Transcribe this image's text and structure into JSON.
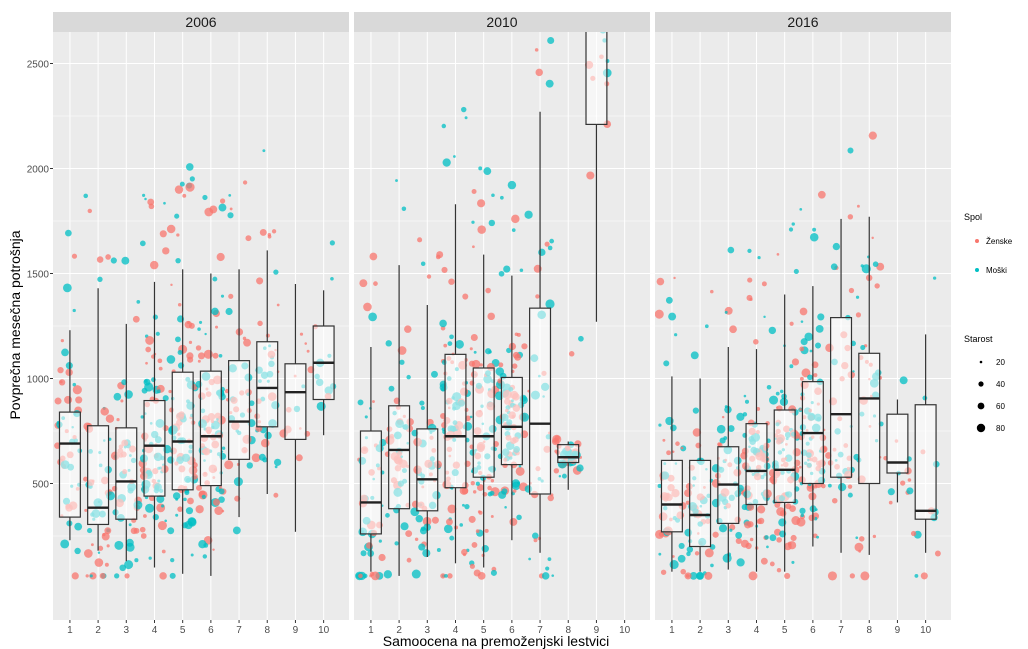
{
  "chart_data": {
    "type": "scatter",
    "subtype": "faceted jittered points with boxplots",
    "xlabel": "Samoocena na premoženjski lestvici",
    "ylabel": "Povprečna mesečna potrošnja",
    "x_ticks": [
      "1",
      "2",
      "3",
      "4",
      "5",
      "6",
      "7",
      "8",
      "9",
      "10"
    ],
    "y_ticks": [
      500,
      1000,
      1500,
      2000,
      2500
    ],
    "ylim": [
      -150,
      2650
    ],
    "grid": true,
    "legend_position": "right",
    "legend": {
      "color_title": "Spol",
      "color_entries": [
        {
          "label": "Ženske",
          "color": "#F8766D"
        },
        {
          "label": "Moški",
          "color": "#00BFC4"
        }
      ],
      "size_title": "Starost",
      "size_entries": [
        20,
        40,
        60,
        80
      ]
    },
    "colors": {
      "female": "#F8766D",
      "male": "#00BFC4",
      "panel_bg": "#EBEBEB",
      "strip_bg": "#D9D9D9",
      "grid": "#FFFFFF"
    },
    "facets": [
      {
        "label": "2006",
        "boxes": [
          {
            "x": 1,
            "q1": 340,
            "median": 690,
            "q3": 840,
            "low": 230,
            "high": 1230
          },
          {
            "x": 2,
            "q1": 305,
            "median": 385,
            "q3": 775,
            "low": 180,
            "high": 1430
          },
          {
            "x": 3,
            "q1": 330,
            "median": 510,
            "q3": 765,
            "low": 130,
            "high": 1260
          },
          {
            "x": 4,
            "q1": 440,
            "median": 680,
            "q3": 895,
            "low": 100,
            "high": 1460
          },
          {
            "x": 5,
            "q1": 470,
            "median": 700,
            "q3": 1030,
            "low": 70,
            "high": 1520
          },
          {
            "x": 6,
            "q1": 490,
            "median": 725,
            "q3": 1035,
            "low": 60,
            "high": 1500
          },
          {
            "x": 7,
            "q1": 615,
            "median": 795,
            "q3": 1085,
            "low": 340,
            "high": 1520
          },
          {
            "x": 8,
            "q1": 770,
            "median": 955,
            "q3": 1175,
            "low": 450,
            "high": 1610
          },
          {
            "x": 9,
            "q1": 710,
            "median": 935,
            "q3": 1070,
            "low": 270,
            "high": 1450
          },
          {
            "x": 10,
            "q1": 900,
            "median": 1075,
            "q3": 1250,
            "low": 730,
            "high": 1420
          }
        ]
      },
      {
        "label": "2010",
        "boxes": [
          {
            "x": 1,
            "q1": 260,
            "median": 410,
            "q3": 750,
            "low": 80,
            "high": 1150
          },
          {
            "x": 2,
            "q1": 380,
            "median": 660,
            "q3": 870,
            "low": 60,
            "high": 1540
          },
          {
            "x": 3,
            "q1": 370,
            "median": 520,
            "q3": 760,
            "low": 150,
            "high": 1350
          },
          {
            "x": 4,
            "q1": 480,
            "median": 725,
            "q3": 1115,
            "low": 120,
            "high": 1830
          },
          {
            "x": 5,
            "q1": 530,
            "median": 725,
            "q3": 1050,
            "low": 100,
            "high": 1590
          },
          {
            "x": 6,
            "q1": 590,
            "median": 770,
            "q3": 1005,
            "low": 230,
            "high": 1490
          },
          {
            "x": 7,
            "q1": 450,
            "median": 785,
            "q3": 1335,
            "low": 170,
            "high": 2270
          },
          {
            "x": 8,
            "q1": 600,
            "median": 625,
            "q3": 685,
            "low": 470,
            "high": 700
          },
          {
            "x": 9,
            "q1": 2210,
            "median": 2700,
            "q3": 2700,
            "low": 1270,
            "high": 2700
          }
        ]
      },
      {
        "label": "2016",
        "boxes": [
          {
            "x": 1,
            "q1": 270,
            "median": 400,
            "q3": 610,
            "low": 80,
            "high": 1010
          },
          {
            "x": 2,
            "q1": 200,
            "median": 350,
            "q3": 610,
            "low": 80,
            "high": 1000
          },
          {
            "x": 3,
            "q1": 310,
            "median": 495,
            "q3": 675,
            "low": 90,
            "high": 1150
          },
          {
            "x": 4,
            "q1": 400,
            "median": 560,
            "q3": 785,
            "low": 80,
            "high": 1140
          },
          {
            "x": 5,
            "q1": 410,
            "median": 565,
            "q3": 850,
            "low": 80,
            "high": 1400
          },
          {
            "x": 6,
            "q1": 500,
            "median": 740,
            "q3": 985,
            "low": 200,
            "high": 1440
          },
          {
            "x": 7,
            "q1": 530,
            "median": 830,
            "q3": 1290,
            "low": 170,
            "high": 1760
          },
          {
            "x": 8,
            "q1": 500,
            "median": 905,
            "q3": 1120,
            "low": 160,
            "high": 1770
          },
          {
            "x": 9,
            "q1": 550,
            "median": 600,
            "q3": 830,
            "low": 410,
            "high": 900
          },
          {
            "x": 10,
            "q1": 330,
            "median": 370,
            "q3": 875,
            "low": 170,
            "high": 1210
          }
        ]
      }
    ]
  }
}
